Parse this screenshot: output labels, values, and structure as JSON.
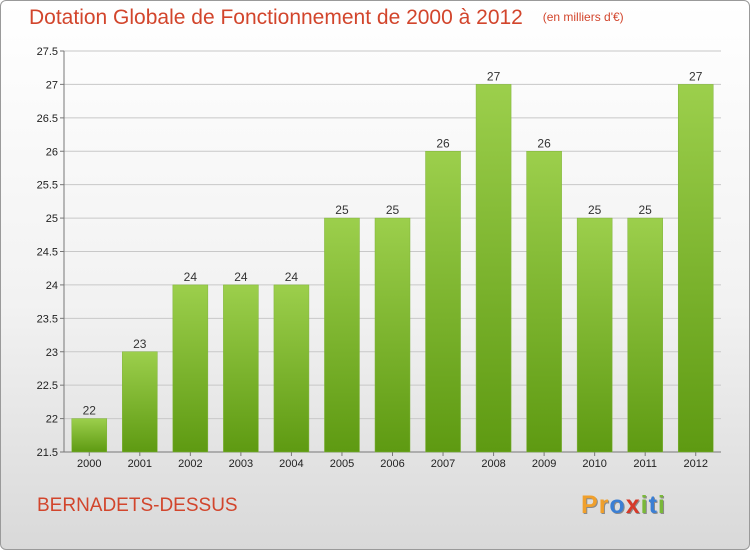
{
  "header": {
    "title": "Dotation Globale de Fonctionnement de 2000 à 2012",
    "unit": "(en milliers d'€)"
  },
  "footer": {
    "commune": "BERNADETS-DESSUS",
    "logo": [
      "P",
      "r",
      "o",
      "x",
      "i",
      "t",
      "i"
    ]
  },
  "colors": {
    "title": "#d2452c",
    "bar_light": "#9ccf4c",
    "bar_dark": "#5e9a12",
    "grid": "#c8c8c8",
    "logo": [
      "#f0a02c",
      "#f0a02c",
      "#3b7fd4",
      "#d63a2a",
      "#7ab83a",
      "#3b7fd4",
      "#7ab83a"
    ]
  },
  "chart_data": {
    "type": "bar",
    "title": "Dotation Globale de Fonctionnement de 2000 à 2012",
    "ylabel": "en milliers d'€",
    "xlabel": "",
    "categories": [
      "2000",
      "2001",
      "2002",
      "2003",
      "2004",
      "2005",
      "2006",
      "2007",
      "2008",
      "2009",
      "2010",
      "2011",
      "2012"
    ],
    "values": [
      22,
      23,
      24,
      24,
      24,
      25,
      25,
      26,
      27,
      26,
      25,
      25,
      27
    ],
    "ylim": [
      21.5,
      27.5
    ],
    "yticks": [
      21.5,
      22,
      22.5,
      23,
      23.5,
      24,
      24.5,
      25,
      25.5,
      26,
      26.5,
      27,
      27.5
    ],
    "grid": true
  }
}
